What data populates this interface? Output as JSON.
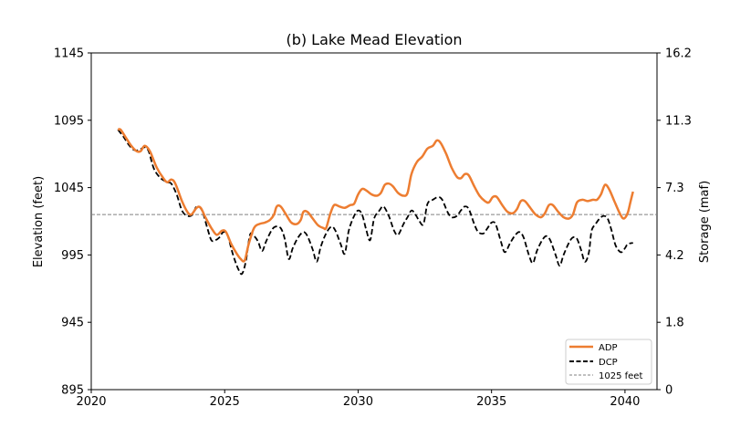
{
  "chart_data": {
    "type": "line",
    "title": "(b) Lake Mead Elevation",
    "xlabel": "",
    "ylabel": "Elevation (feet)",
    "y2label": "Storage (maf)",
    "xlim": [
      2020,
      2041.2
    ],
    "ylim": [
      895,
      1145
    ],
    "x_ticks": [
      2020,
      2025,
      2030,
      2035,
      2040
    ],
    "x_tick_labels": [
      "2020",
      "2025",
      "2030",
      "2035",
      "2040"
    ],
    "y_ticks": [
      895,
      945,
      995,
      1045,
      1095,
      1145
    ],
    "y_tick_labels": [
      "895",
      "945",
      "995",
      "1045",
      "1095",
      "1145"
    ],
    "y2_tick_labels": [
      "0",
      "1.8",
      "4.2",
      "7.3",
      "11.3",
      "16.2"
    ],
    "grid": false,
    "legend_position": "lower-right",
    "reference_line": {
      "name": "1025 feet",
      "y": 1025,
      "color": "#808080"
    },
    "series": [
      {
        "name": "ADP",
        "color": "#ed7d31",
        "style": "solid",
        "points": [
          [
            2021.0,
            1088
          ],
          [
            2021.1,
            1088
          ],
          [
            2021.3,
            1082
          ],
          [
            2021.5,
            1076
          ],
          [
            2021.7,
            1072
          ],
          [
            2021.85,
            1072
          ],
          [
            2022.0,
            1076
          ],
          [
            2022.2,
            1072
          ],
          [
            2022.45,
            1060
          ],
          [
            2022.7,
            1052
          ],
          [
            2022.85,
            1049
          ],
          [
            2023.0,
            1051
          ],
          [
            2023.15,
            1048
          ],
          [
            2023.4,
            1035
          ],
          [
            2023.6,
            1027
          ],
          [
            2023.75,
            1025
          ],
          [
            2023.95,
            1030
          ],
          [
            2024.1,
            1030
          ],
          [
            2024.3,
            1022
          ],
          [
            2024.5,
            1015
          ],
          [
            2024.7,
            1010
          ],
          [
            2024.9,
            1013
          ],
          [
            2025.05,
            1012
          ],
          [
            2025.25,
            1003
          ],
          [
            2025.45,
            996
          ],
          [
            2025.6,
            992
          ],
          [
            2025.75,
            991
          ],
          [
            2025.9,
            1003
          ],
          [
            2026.1,
            1015
          ],
          [
            2026.3,
            1018
          ],
          [
            2026.5,
            1019
          ],
          [
            2026.7,
            1021
          ],
          [
            2026.85,
            1025
          ],
          [
            2026.95,
            1031
          ],
          [
            2027.1,
            1031
          ],
          [
            2027.3,
            1025
          ],
          [
            2027.5,
            1019
          ],
          [
            2027.7,
            1018
          ],
          [
            2027.85,
            1021
          ],
          [
            2027.95,
            1027
          ],
          [
            2028.1,
            1027
          ],
          [
            2028.3,
            1022
          ],
          [
            2028.5,
            1017
          ],
          [
            2028.7,
            1015
          ],
          [
            2028.8,
            1015
          ],
          [
            2028.95,
            1025
          ],
          [
            2029.1,
            1032
          ],
          [
            2029.3,
            1031
          ],
          [
            2029.5,
            1030
          ],
          [
            2029.7,
            1032
          ],
          [
            2029.85,
            1033
          ],
          [
            2030.0,
            1040
          ],
          [
            2030.15,
            1044
          ],
          [
            2030.3,
            1043
          ],
          [
            2030.5,
            1040
          ],
          [
            2030.7,
            1039
          ],
          [
            2030.85,
            1041
          ],
          [
            2031.0,
            1047
          ],
          [
            2031.15,
            1048
          ],
          [
            2031.3,
            1046
          ],
          [
            2031.5,
            1041
          ],
          [
            2031.7,
            1039
          ],
          [
            2031.85,
            1041
          ],
          [
            2032.0,
            1055
          ],
          [
            2032.2,
            1064
          ],
          [
            2032.4,
            1068
          ],
          [
            2032.6,
            1074
          ],
          [
            2032.8,
            1076
          ],
          [
            2032.95,
            1080
          ],
          [
            2033.1,
            1078
          ],
          [
            2033.3,
            1070
          ],
          [
            2033.5,
            1060
          ],
          [
            2033.7,
            1053
          ],
          [
            2033.85,
            1052
          ],
          [
            2034.0,
            1055
          ],
          [
            2034.15,
            1054
          ],
          [
            2034.35,
            1046
          ],
          [
            2034.55,
            1039
          ],
          [
            2034.75,
            1035
          ],
          [
            2034.9,
            1034
          ],
          [
            2035.05,
            1038
          ],
          [
            2035.2,
            1038
          ],
          [
            2035.4,
            1032
          ],
          [
            2035.6,
            1027
          ],
          [
            2035.8,
            1026
          ],
          [
            2035.95,
            1029
          ],
          [
            2036.1,
            1035
          ],
          [
            2036.25,
            1035
          ],
          [
            2036.45,
            1030
          ],
          [
            2036.65,
            1025
          ],
          [
            2036.85,
            1023
          ],
          [
            2037.0,
            1026
          ],
          [
            2037.15,
            1032
          ],
          [
            2037.3,
            1032
          ],
          [
            2037.5,
            1027
          ],
          [
            2037.7,
            1023
          ],
          [
            2037.9,
            1022
          ],
          [
            2038.05,
            1025
          ],
          [
            2038.2,
            1034
          ],
          [
            2038.4,
            1036
          ],
          [
            2038.6,
            1035
          ],
          [
            2038.8,
            1036
          ],
          [
            2038.95,
            1036
          ],
          [
            2039.1,
            1040
          ],
          [
            2039.25,
            1047
          ],
          [
            2039.4,
            1044
          ],
          [
            2039.6,
            1035
          ],
          [
            2039.8,
            1026
          ],
          [
            2039.95,
            1022
          ],
          [
            2040.1,
            1026
          ],
          [
            2040.2,
            1034
          ],
          [
            2040.3,
            1042
          ]
        ]
      },
      {
        "name": "DCP",
        "color": "#000000",
        "style": "dashed",
        "points": [
          [
            2021.0,
            1088
          ],
          [
            2021.2,
            1083
          ],
          [
            2021.4,
            1077
          ],
          [
            2021.6,
            1073
          ],
          [
            2021.8,
            1073
          ],
          [
            2022.0,
            1075
          ],
          [
            2022.15,
            1072
          ],
          [
            2022.35,
            1059
          ],
          [
            2022.6,
            1052
          ],
          [
            2022.85,
            1049
          ],
          [
            2023.0,
            1048
          ],
          [
            2023.2,
            1040
          ],
          [
            2023.4,
            1028
          ],
          [
            2023.6,
            1024
          ],
          [
            2023.8,
            1025
          ],
          [
            2023.95,
            1031
          ],
          [
            2024.15,
            1028
          ],
          [
            2024.35,
            1015
          ],
          [
            2024.5,
            1006
          ],
          [
            2024.65,
            1006
          ],
          [
            2024.8,
            1008
          ],
          [
            2024.95,
            1012
          ],
          [
            2025.1,
            1010
          ],
          [
            2025.3,
            996
          ],
          [
            2025.5,
            985
          ],
          [
            2025.65,
            981
          ],
          [
            2025.8,
            991
          ],
          [
            2025.95,
            1010
          ],
          [
            2026.1,
            1009
          ],
          [
            2026.25,
            1005
          ],
          [
            2026.4,
            998
          ],
          [
            2026.55,
            1005
          ],
          [
            2026.75,
            1013
          ],
          [
            2026.9,
            1016
          ],
          [
            2027.1,
            1015
          ],
          [
            2027.25,
            1007
          ],
          [
            2027.4,
            992
          ],
          [
            2027.55,
            1000
          ],
          [
            2027.75,
            1008
          ],
          [
            2027.95,
            1012
          ],
          [
            2028.1,
            1009
          ],
          [
            2028.3,
            999
          ],
          [
            2028.45,
            990
          ],
          [
            2028.6,
            1001
          ],
          [
            2028.8,
            1011
          ],
          [
            2029.0,
            1016
          ],
          [
            2029.15,
            1013
          ],
          [
            2029.35,
            1003
          ],
          [
            2029.5,
            996
          ],
          [
            2029.65,
            1013
          ],
          [
            2029.85,
            1024
          ],
          [
            2030.0,
            1028
          ],
          [
            2030.15,
            1025
          ],
          [
            2030.3,
            1014
          ],
          [
            2030.45,
            1006
          ],
          [
            2030.6,
            1022
          ],
          [
            2030.8,
            1028
          ],
          [
            2030.95,
            1031
          ],
          [
            2031.15,
            1024
          ],
          [
            2031.35,
            1013
          ],
          [
            2031.5,
            1010
          ],
          [
            2031.7,
            1018
          ],
          [
            2031.85,
            1023
          ],
          [
            2032.0,
            1028
          ],
          [
            2032.15,
            1025
          ],
          [
            2032.3,
            1020
          ],
          [
            2032.45,
            1018
          ],
          [
            2032.6,
            1033
          ],
          [
            2032.8,
            1036
          ],
          [
            2033.0,
            1038
          ],
          [
            2033.15,
            1036
          ],
          [
            2033.35,
            1027
          ],
          [
            2033.5,
            1023
          ],
          [
            2033.7,
            1024
          ],
          [
            2033.85,
            1028
          ],
          [
            2034.0,
            1031
          ],
          [
            2034.15,
            1029
          ],
          [
            2034.35,
            1018
          ],
          [
            2034.5,
            1012
          ],
          [
            2034.7,
            1011
          ],
          [
            2034.85,
            1015
          ],
          [
            2035.0,
            1019
          ],
          [
            2035.15,
            1018
          ],
          [
            2035.35,
            1005
          ],
          [
            2035.5,
            997
          ],
          [
            2035.7,
            1004
          ],
          [
            2035.9,
            1010
          ],
          [
            2036.05,
            1012
          ],
          [
            2036.2,
            1008
          ],
          [
            2036.4,
            995
          ],
          [
            2036.55,
            989
          ],
          [
            2036.7,
            998
          ],
          [
            2036.9,
            1006
          ],
          [
            2037.05,
            1009
          ],
          [
            2037.2,
            1006
          ],
          [
            2037.4,
            995
          ],
          [
            2037.55,
            987
          ],
          [
            2037.7,
            995
          ],
          [
            2037.9,
            1004
          ],
          [
            2038.05,
            1008
          ],
          [
            2038.2,
            1007
          ],
          [
            2038.35,
            999
          ],
          [
            2038.5,
            990
          ],
          [
            2038.65,
            997
          ],
          [
            2038.75,
            1013
          ],
          [
            2038.9,
            1018
          ],
          [
            2039.05,
            1022
          ],
          [
            2039.2,
            1024
          ],
          [
            2039.35,
            1022
          ],
          [
            2039.5,
            1013
          ],
          [
            2039.65,
            1002
          ],
          [
            2039.85,
            997
          ],
          [
            2040.0,
            1000
          ],
          [
            2040.1,
            1003
          ],
          [
            2040.3,
            1004
          ]
        ]
      }
    ]
  }
}
